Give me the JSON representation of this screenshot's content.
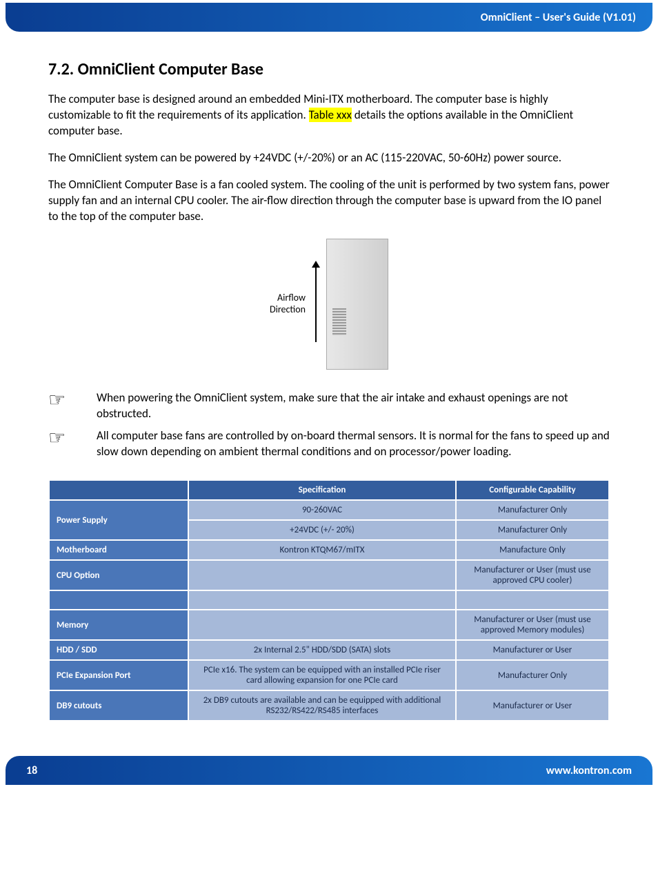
{
  "header": {
    "title": "OmniClient – User's Guide (V1.01)"
  },
  "section": {
    "number": "7.2.",
    "title": "OmniClient Computer Base"
  },
  "paragraphs": {
    "p1_a": "The computer base is designed around an embedded Mini-ITX motherboard.  The computer base is highly customizable to fit the requirements of its application.  ",
    "p1_hl": "Table xxx",
    "p1_b": " details the options available in the OmniClient computer base.",
    "p2": "The OmniClient system can be powered by +24VDC (+/-20%) or an AC (115-220VAC, 50-60Hz) power source.",
    "p3": "The OmniClient Computer Base is a fan cooled system. The cooling of the unit is performed by two system fans, power supply fan and an internal CPU cooler.  The air-flow direction through the computer base is upward from the IO panel to the top of the computer base."
  },
  "airflow_label_1": "Airflow",
  "airflow_label_2": "Direction",
  "notes": {
    "n1": "When powering the OmniClient system, make sure that the air intake and exhaust openings are not obstructed.",
    "n2": "All computer base fans are controlled by on-board thermal sensors.  It is normal for the fans to speed up and slow down depending on ambient thermal conditions and on processor/power loading."
  },
  "table": {
    "headers": {
      "blank": "",
      "spec": "Specification",
      "cap": "Configurable Capability"
    },
    "rows": [
      {
        "label": "Power Supply",
        "spec": "90-260VAC",
        "cap": "Manufacturer Only",
        "rowspan": 2
      },
      {
        "label": "",
        "spec": "+24VDC (+/- 20%)",
        "cap": "Manufacturer Only"
      },
      {
        "label": "Motherboard",
        "spec": "Kontron KTQM67/mITX",
        "cap": "Manufacture Only"
      },
      {
        "label": "CPU Option",
        "spec": "",
        "cap": "Manufacturer or User (must use approved CPU cooler)"
      },
      {
        "label": "",
        "spec": "",
        "cap": "",
        "empty": true
      },
      {
        "label": "Memory",
        "spec": "",
        "cap": "Manufacturer or User (must use approved Memory modules)"
      },
      {
        "label": "HDD / SDD",
        "spec": "2x Internal 2.5\" HDD/SDD (SATA) slots",
        "cap": "Manufacturer or User"
      },
      {
        "label": "PCIe Expansion Port",
        "spec": "PCIe x16.  The system can be equipped with an installed PCIe riser card allowing expansion for one PCIe card",
        "cap": "Manufacturer Only"
      },
      {
        "label": "DB9 cutouts",
        "spec": "2x DB9 cutouts are available and can be equipped with additional RS232/RS422/RS485 interfaces",
        "cap": "Manufacturer or User"
      }
    ],
    "colors": {
      "header_bg": "#345e9e",
      "label_bg": "#4a76b8",
      "cell_bg": "#a6b9d9",
      "header_text": "#ffffff",
      "cell_text": "#1a2a4a"
    }
  },
  "footer": {
    "page": "18",
    "url": "www.kontron.com"
  },
  "colors": {
    "header_gradient_from": "#0a3d91",
    "header_gradient_to": "#1976d2",
    "highlight": "#ffff00"
  }
}
